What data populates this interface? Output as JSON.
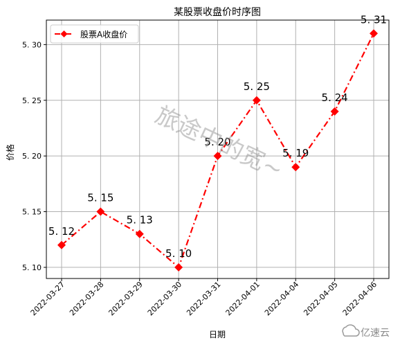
{
  "chart_data": {
    "type": "line",
    "title": "某股票收盘价时序图",
    "xlabel": "日期",
    "ylabel": "价格",
    "categories": [
      "2022-03-27",
      "2022-03-28",
      "2022-03-29",
      "2022-03-30",
      "2022-03-31",
      "2022-04-01",
      "2022-04-04",
      "2022-04-05",
      "2022-04-06"
    ],
    "series": [
      {
        "name": "股票A收盘价",
        "values": [
          5.12,
          5.15,
          5.13,
          5.1,
          5.2,
          5.25,
          5.19,
          5.24,
          5.31
        ],
        "data_labels": [
          "5. 12",
          "5. 15",
          "5. 13",
          "5. 10",
          "5. 20",
          "5. 25",
          "5. 19",
          "5. 24",
          "5. 31"
        ],
        "color": "#ff0000",
        "line_style": "dash-dot",
        "marker": "diamond"
      }
    ],
    "ylim": [
      5.09,
      5.322
    ],
    "yticks": [
      5.1,
      5.15,
      5.2,
      5.25,
      5.3
    ],
    "ytick_labels": [
      "5. 10",
      "5. 15",
      "5. 20",
      "5. 25",
      "5. 30"
    ],
    "xtick_rotation": 45,
    "grid": true,
    "legend_position": "top-left"
  },
  "watermark": {
    "text": "旅途中的宽~"
  },
  "logo": {
    "text": "亿速云",
    "icon": "cloud-logo-icon"
  },
  "colors": {
    "series": "#ff0000",
    "grid": "#b0b0b0",
    "axes": "#000000"
  }
}
